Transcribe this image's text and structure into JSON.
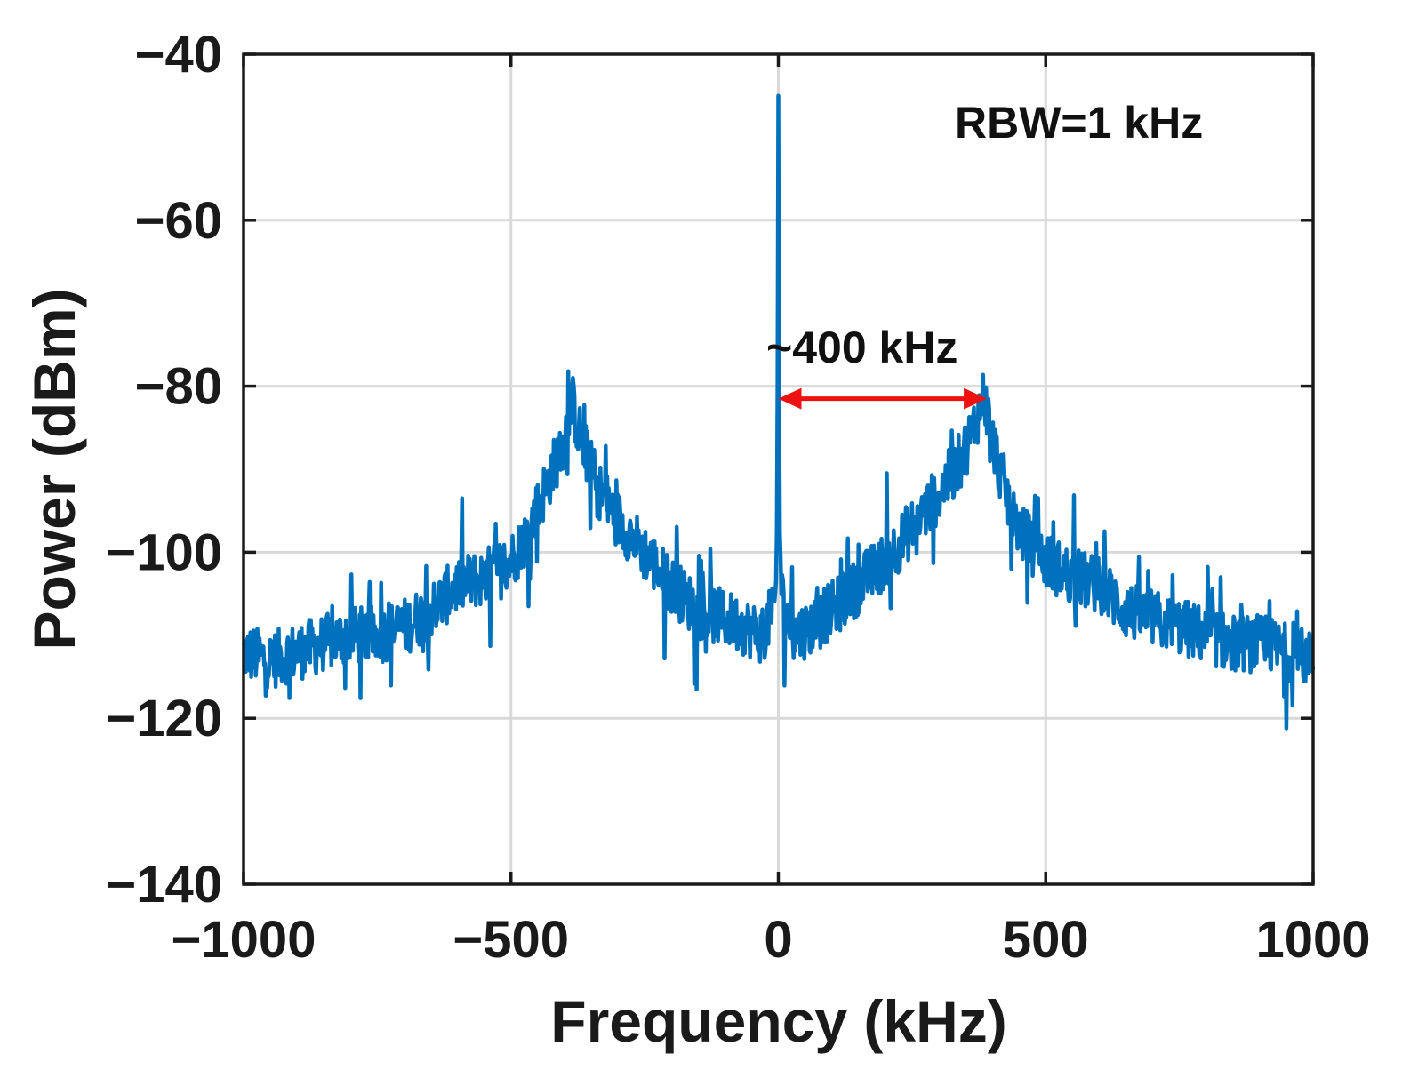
{
  "chart_data": {
    "type": "line",
    "title": "",
    "xlabel": "Frequency (kHz)",
    "ylabel": "Power (dBm)",
    "xlim": [
      -1000,
      1000
    ],
    "ylim": [
      -140,
      -40
    ],
    "x_ticks": [
      -1000,
      -500,
      0,
      500,
      1000
    ],
    "y_ticks": [
      -40,
      -60,
      -80,
      -100,
      -120,
      -140
    ],
    "x_tick_labels": [
      "−1000",
      "−500",
      "0",
      "500",
      "1000"
    ],
    "y_tick_labels": [
      "−40",
      "−60",
      "−80",
      "−100",
      "−120",
      "−140"
    ],
    "grid": true,
    "line_color": "#0072BD",
    "series": [
      {
        "x": [
          -1000,
          -950,
          -900,
          -850,
          -800,
          -750,
          -700,
          -650,
          -600,
          -550,
          -500,
          -470,
          -440,
          -410,
          -395,
          -385,
          -375,
          -360,
          -340,
          -300,
          -250,
          -200,
          -150,
          -100,
          -60,
          -30,
          -10,
          -5,
          -2,
          0,
          2,
          5,
          10,
          30,
          60,
          100,
          150,
          200,
          250,
          300,
          340,
          360,
          375,
          385,
          395,
          410,
          440,
          470,
          500,
          550,
          600,
          650,
          700,
          750,
          800,
          850,
          900,
          950,
          1000
        ],
        "y": [
          -112,
          -113,
          -112,
          -111,
          -110,
          -110,
          -109,
          -107,
          -104,
          -103,
          -101,
          -98,
          -93,
          -88,
          -85,
          -82,
          -85,
          -88,
          -92,
          -96,
          -100,
          -104,
          -107,
          -108,
          -109,
          -110,
          -107,
          -104,
          -95,
          -45,
          -95,
          -104,
          -107,
          -110,
          -109,
          -107,
          -104,
          -101,
          -97,
          -93,
          -89,
          -86,
          -83,
          -81,
          -85,
          -89,
          -96,
          -99,
          -101,
          -103,
          -104,
          -107,
          -108,
          -109,
          -110,
          -111,
          -111,
          -112,
          -113
        ]
      }
    ],
    "annotations": [
      {
        "text": "RBW=1 kHz"
      },
      {
        "text": "~400 kHz",
        "arrow_from_khz": 0,
        "arrow_to_khz": 390,
        "arrow_level_dbm": -81.5,
        "arrow_color": "#ee1111"
      }
    ]
  }
}
